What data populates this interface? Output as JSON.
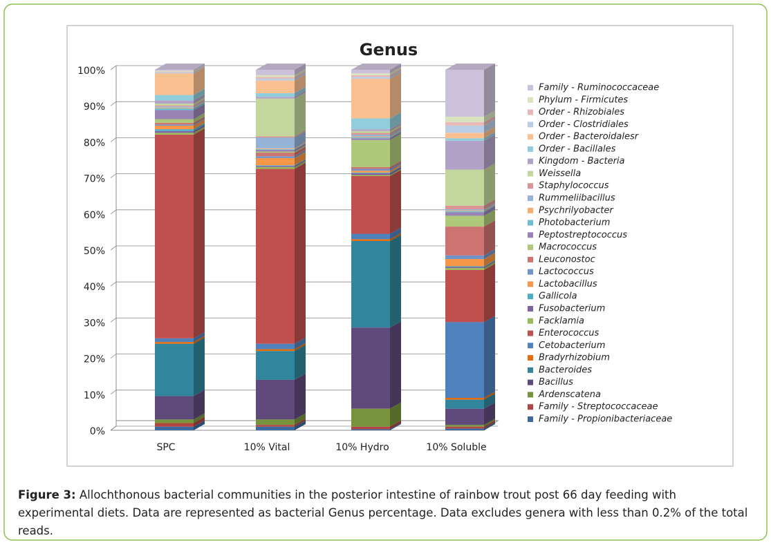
{
  "chart_data": {
    "type": "stacked-bar-3d",
    "title": "Genus",
    "categories": [
      "SPC",
      "10% Vital",
      "10% Hydro",
      "10% Soluble"
    ],
    "ylim": [
      0,
      100
    ],
    "yticks": [
      {
        "value": 0,
        "label": "0%"
      },
      {
        "value": 10,
        "label": "10%"
      },
      {
        "value": 20,
        "label": "20%"
      },
      {
        "value": 30,
        "label": "30%"
      },
      {
        "value": 40,
        "label": "40%"
      },
      {
        "value": 50,
        "label": "50%"
      },
      {
        "value": 60,
        "label": "60%"
      },
      {
        "value": 70,
        "label": "70%"
      },
      {
        "value": 80,
        "label": "80%"
      },
      {
        "value": 90,
        "label": "90%"
      },
      {
        "value": 100,
        "label": "100%"
      }
    ],
    "grid": true,
    "legend": "right",
    "series": [
      {
        "name": "Family - Propionibacteriaceae",
        "color": "#3C6A9E",
        "values": [
          1,
          1,
          0.3,
          0.5
        ]
      },
      {
        "name": "Family - Streptococcaceae",
        "color": "#B04542",
        "values": [
          1,
          0.5,
          0.7,
          0.5
        ]
      },
      {
        "name": "Ardenscatena",
        "color": "#77933C",
        "values": [
          1,
          1.5,
          5,
          0.5
        ]
      },
      {
        "name": "Bacillus",
        "color": "#604A7B",
        "values": [
          6.5,
          11,
          22.5,
          4.5
        ]
      },
      {
        "name": "Bacteroides",
        "color": "#31859C",
        "values": [
          14.5,
          8,
          24,
          2.5
        ]
      },
      {
        "name": "Bradyrhizobium",
        "color": "#E46C0A",
        "values": [
          0.5,
          0.5,
          0.5,
          0.5
        ]
      },
      {
        "name": "Cetobacterium",
        "color": "#4F81BD",
        "values": [
          1,
          1.5,
          1.5,
          21
        ]
      },
      {
        "name": "Enterococcus",
        "color": "#C0504D",
        "values": [
          56.5,
          48.5,
          16,
          14.5
        ]
      },
      {
        "name": "Facklamia",
        "color": "#9BBB59",
        "values": [
          0.5,
          0.5,
          0.3,
          0.5
        ]
      },
      {
        "name": "Fusobacterium",
        "color": "#8064A2",
        "values": [
          0.5,
          0.3,
          0.5,
          0.3
        ]
      },
      {
        "name": "Gallicola",
        "color": "#4BACC6",
        "values": [
          0.5,
          0.2,
          0.2,
          0.2
        ]
      },
      {
        "name": "Lactobacillus",
        "color": "#F79646",
        "values": [
          1,
          2,
          0.5,
          2
        ]
      },
      {
        "name": "Lactococcus",
        "color": "#7094C8",
        "values": [
          0.3,
          0.5,
          0.5,
          1
        ]
      },
      {
        "name": "Leuconostoc",
        "color": "#CD7371",
        "values": [
          0.5,
          1,
          0.5,
          8
        ]
      },
      {
        "name": "Macrococcus",
        "color": "#AFC97A",
        "values": [
          1,
          0.3,
          7.5,
          3
        ]
      },
      {
        "name": "Peptostreptococcus",
        "color": "#9983B5",
        "values": [
          2.5,
          0.5,
          0.5,
          1
        ]
      },
      {
        "name": "Photobacterium",
        "color": "#6FBDD1",
        "values": [
          0.5,
          0.2,
          0.3,
          0.3
        ]
      },
      {
        "name": "Psychrilyobacter",
        "color": "#F9AB6B",
        "values": [
          0.2,
          0.2,
          0.2,
          0.2
        ]
      },
      {
        "name": "Rummeliibacillus",
        "color": "#95B3D7",
        "values": [
          0.3,
          3,
          0.5,
          0.3
        ]
      },
      {
        "name": "Staphylococcus",
        "color": "#D99694",
        "values": [
          0.3,
          0.3,
          0.5,
          1
        ]
      },
      {
        "name": "Weissella",
        "color": "#C3D69B",
        "values": [
          0.5,
          10.5,
          0.5,
          10
        ]
      },
      {
        "name": "Kingdom - Bacteria",
        "color": "#B3A2C7",
        "values": [
          0.9,
          0.5,
          0.5,
          8
        ]
      },
      {
        "name": "Order - Bacillales",
        "color": "#92CDDC",
        "values": [
          1.5,
          1,
          3,
          0.7
        ]
      },
      {
        "name": "Order - Bacteroidalesr",
        "color": "#FAC090",
        "values": [
          6,
          3.5,
          11,
          1.5
        ]
      },
      {
        "name": "Order - Clostridiales",
        "color": "#B9CDE5",
        "values": [
          0.3,
          0.5,
          0.5,
          2
        ]
      },
      {
        "name": "Order - Rhizobiales",
        "color": "#E6B9B8",
        "values": [
          0.2,
          0.5,
          0.5,
          1
        ]
      },
      {
        "name": "Phylum - Firmicutes",
        "color": "#D7E4BD",
        "values": [
          0.2,
          0.5,
          0.5,
          1.5
        ]
      },
      {
        "name": "Family - Ruminococcaceae",
        "color": "#CCC1DA",
        "values": [
          0.3,
          1.5,
          1,
          13
        ]
      }
    ]
  },
  "figure_caption": {
    "label": "Figure 3:",
    "text": "Allochthonous bacterial communities in the posterior intestine of rainbow trout post 66 day feeding with experimental diets. Data are represented as bacterial Genus percentage. Data excludes genera with less than 0.2% of the total reads."
  }
}
